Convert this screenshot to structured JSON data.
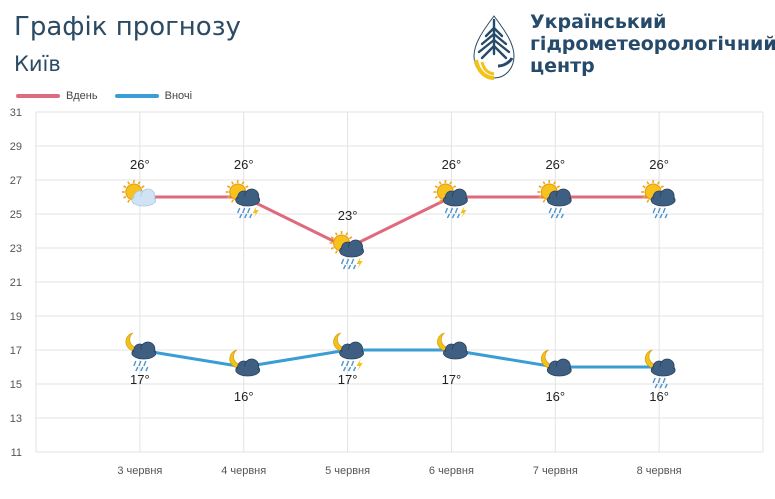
{
  "header": {
    "title": "Графік прогнозу",
    "city": "Київ",
    "org_line1": "Український",
    "org_line2": "гідрометеорологічний",
    "org_line3": "центр"
  },
  "colors": {
    "day": "#e06a7d",
    "night": "#3a9ed4",
    "grid": "#e3e3e3",
    "title": "#2b4a63"
  },
  "chart_data": {
    "type": "line",
    "categories": [
      "3 червня",
      "4 червня",
      "5 червня",
      "6 червня",
      "7 червня",
      "8 червня"
    ],
    "ylim": [
      11,
      31
    ],
    "yticks": [
      11,
      13,
      15,
      17,
      19,
      21,
      23,
      25,
      27,
      29,
      31
    ],
    "legend_position": "top-left",
    "grid": true,
    "series": [
      {
        "name": "Вдень",
        "values": [
          26,
          26,
          23,
          26,
          26,
          26
        ],
        "labels": [
          "26°",
          "26°",
          "23°",
          "26°",
          "26°",
          "26°"
        ],
        "icons": [
          "sun-cloud-icon",
          "sun-rain-thunder-icon",
          "sun-rain-thunder-icon",
          "sun-rain-thunder-icon",
          "sun-rain-icon",
          "sun-rain-icon"
        ]
      },
      {
        "name": "Вночі",
        "values": [
          17,
          16,
          17,
          17,
          16,
          16
        ],
        "labels": [
          "17°",
          "16°",
          "17°",
          "17°",
          "16°",
          "16°"
        ],
        "icons": [
          "moon-rain-icon",
          "moon-cloud-icon",
          "moon-rain-thunder-icon",
          "moon-cloud-icon",
          "moon-cloud-icon",
          "moon-rain-icon"
        ]
      }
    ]
  }
}
